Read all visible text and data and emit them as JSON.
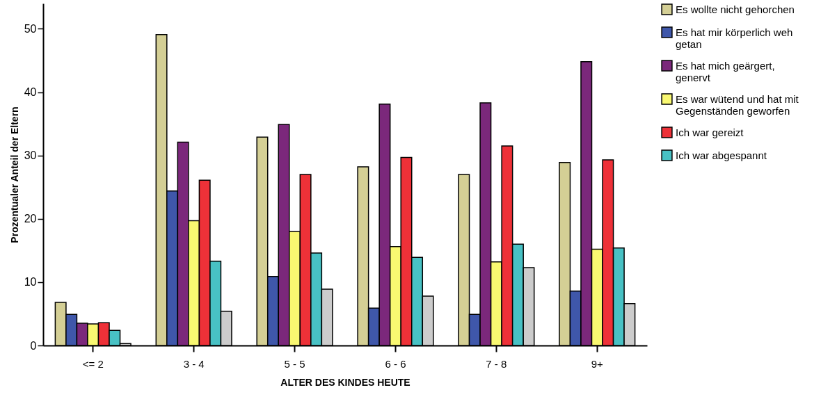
{
  "chart_data": {
    "type": "bar",
    "xlabel": "ALTER DES KINDES HEUTE",
    "ylabel": "Prozentualer Anteil der Eltern",
    "categories": [
      "<= 2",
      "3 - 4",
      "5 - 5",
      "6 - 6",
      "7 - 8",
      "9+"
    ],
    "series": [
      {
        "name": "Es wollte nicht gehorchen",
        "color": "#d4cf95",
        "values": [
          6.8,
          49.1,
          32.9,
          28.2,
          27.0,
          28.9
        ]
      },
      {
        "name": "Es hat mir körperlich weh getan",
        "color": "#3f57aa",
        "values": [
          4.9,
          24.4,
          10.9,
          5.9,
          4.9,
          8.6
        ]
      },
      {
        "name": "Es hat mich geärgert, genervt",
        "color": "#7b287b",
        "values": [
          3.5,
          32.1,
          34.9,
          38.1,
          38.3,
          44.8
        ]
      },
      {
        "name": "Es war wütend und hat mit Gegenständen geworfen",
        "color": "#f9f871",
        "values": [
          3.4,
          19.7,
          18.0,
          15.6,
          13.2,
          15.2
        ]
      },
      {
        "name": "Ich war gereizt",
        "color": "#ee3138",
        "values": [
          3.6,
          26.1,
          27.0,
          29.7,
          31.5,
          29.3
        ]
      },
      {
        "name": "Ich war abgespannt",
        "color": "#48c1c4",
        "values": [
          2.4,
          13.3,
          14.6,
          13.9,
          16.0,
          15.4
        ]
      },
      {
        "color": "#cccccc",
        "values": [
          0.3,
          5.4,
          8.9,
          7.8,
          12.3,
          6.6
        ]
      }
    ],
    "ylim": [
      0,
      54
    ],
    "yticks": [
      0,
      10,
      20,
      30,
      40,
      50
    ],
    "grid": false,
    "legend": "right"
  }
}
